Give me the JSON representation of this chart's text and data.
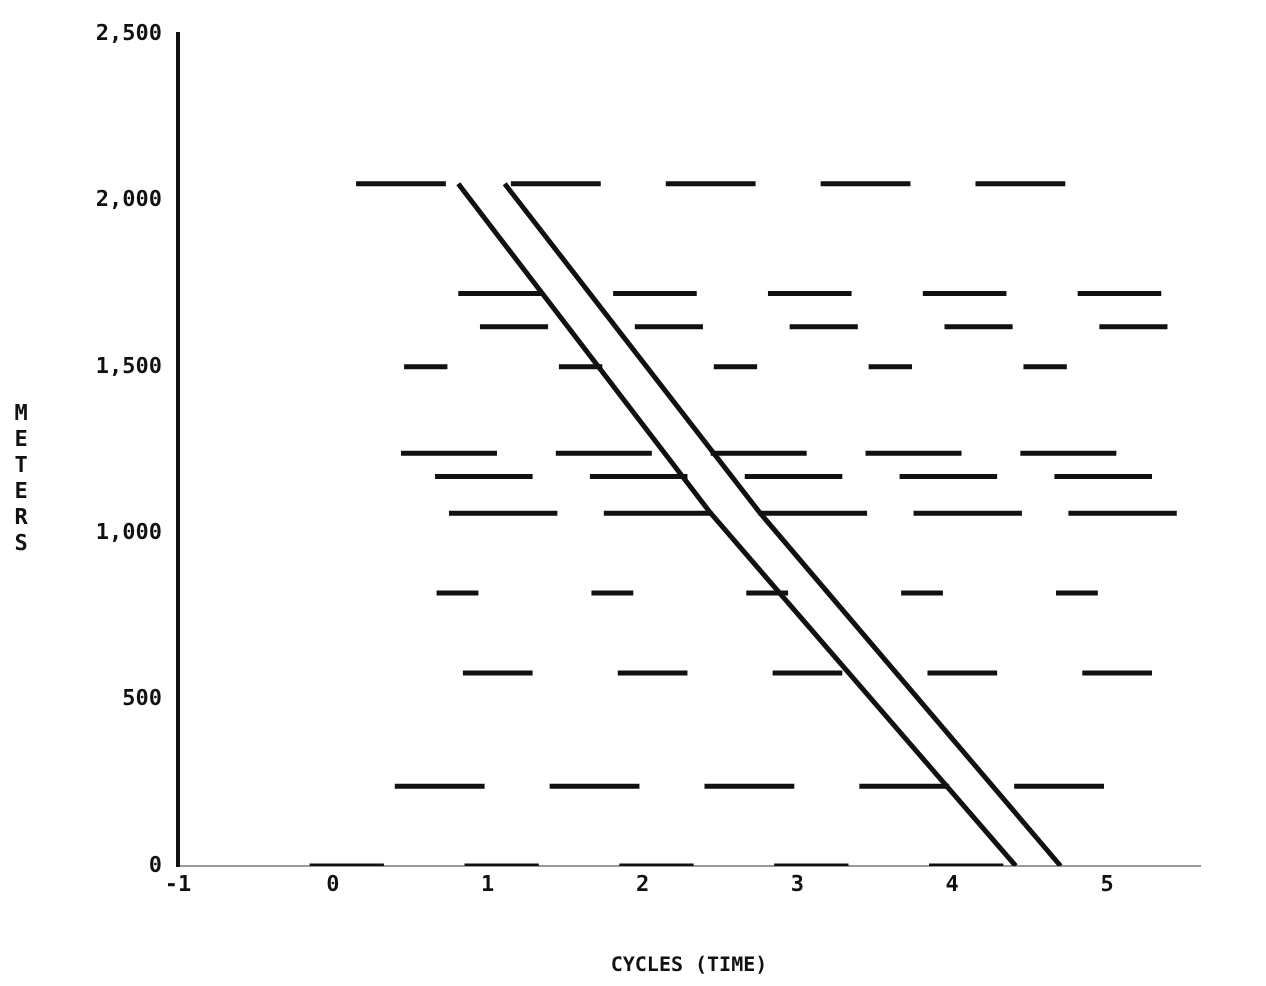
{
  "chart_data": {
    "type": "line",
    "xlabel": "CYCLES (TIME)",
    "ylabel": "METERS",
    "xlim": [
      -1,
      5.6
    ],
    "ylim": [
      0,
      2500
    ],
    "xticks": [
      -1,
      0,
      1,
      2,
      3,
      4,
      5
    ],
    "yticks": [
      0,
      500,
      {
        "value": 1000,
        "label": "1,000"
      },
      {
        "value": 1500,
        "label": "1,500"
      },
      {
        "value": 2000,
        "label": "2,000"
      },
      {
        "value": 2500,
        "label": "2,500"
      }
    ],
    "grid": false,
    "legend": false,
    "marker": "none",
    "line_style": "solid",
    "series": [
      {
        "color": "#111111",
        "x": [
          -0.15,
          0.33,
          0.59,
          0.85,
          1.33,
          1.59,
          1.85,
          2.33,
          2.59,
          2.85,
          3.33,
          3.59,
          3.85,
          4.33
        ],
        "values": [
          0,
          0,
          null,
          0,
          0,
          null,
          0,
          0,
          null,
          0,
          0,
          null,
          0,
          0
        ]
      },
      {
        "color": "#111111",
        "x": [
          0.4,
          0.98,
          1.19,
          1.4,
          1.98,
          2.19,
          2.4,
          2.98,
          3.19,
          3.4,
          3.98,
          4.19,
          4.4,
          4.98
        ],
        "values": [
          240,
          240,
          null,
          240,
          240,
          null,
          240,
          240,
          null,
          240,
          240,
          null,
          240,
          240
        ]
      },
      {
        "color": "#111111",
        "x": [
          0.84,
          1.29,
          1.56,
          1.84,
          2.29,
          2.56,
          2.84,
          3.29,
          3.56,
          3.84,
          4.29,
          4.56,
          4.84,
          5.29
        ],
        "values": [
          580,
          580,
          null,
          580,
          580,
          null,
          580,
          580,
          null,
          580,
          580,
          null,
          580,
          580
        ]
      },
      {
        "color": "#111111",
        "x": [
          0.67,
          0.94,
          1.3,
          1.67,
          1.94,
          2.3,
          2.67,
          2.94,
          3.3,
          3.67,
          3.94,
          4.3,
          4.67,
          4.94
        ],
        "values": [
          820,
          820,
          null,
          820,
          820,
          null,
          820,
          820,
          null,
          820,
          820,
          null,
          820,
          820
        ]
      },
      {
        "color": "#111111",
        "x": [
          0.75,
          1.45,
          1.6,
          1.75,
          2.45,
          2.6,
          2.75,
          3.45,
          3.6,
          3.75,
          4.45,
          4.6,
          4.75,
          5.45
        ],
        "values": [
          1060,
          1060,
          null,
          1060,
          1060,
          null,
          1060,
          1060,
          null,
          1060,
          1060,
          null,
          1060,
          1060
        ]
      },
      {
        "color": "#111111",
        "x": [
          0.66,
          1.29,
          1.48,
          1.66,
          2.29,
          2.48,
          2.66,
          3.29,
          3.48,
          3.66,
          4.29,
          4.48,
          4.66,
          5.29
        ],
        "values": [
          1170,
          1170,
          null,
          1170,
          1170,
          null,
          1170,
          1170,
          null,
          1170,
          1170,
          null,
          1170,
          1170
        ]
      },
      {
        "color": "#111111",
        "x": [
          0.44,
          1.06,
          1.25,
          1.44,
          2.06,
          2.25,
          2.44,
          3.06,
          3.25,
          3.44,
          4.06,
          4.25,
          4.44,
          5.06
        ],
        "values": [
          1240,
          1240,
          null,
          1240,
          1240,
          null,
          1240,
          1240,
          null,
          1240,
          1240,
          null,
          1240,
          1240
        ]
      },
      {
        "color": "#111111",
        "x": [
          0.46,
          0.74,
          1.1,
          1.46,
          1.74,
          2.1,
          2.46,
          2.74,
          3.1,
          3.46,
          3.74,
          4.1,
          4.46,
          4.74
        ],
        "values": [
          1500,
          1500,
          null,
          1500,
          1500,
          null,
          1500,
          1500,
          null,
          1500,
          1500,
          null,
          1500,
          1500
        ]
      },
      {
        "color": "#111111",
        "x": [
          0.95,
          1.39,
          1.67,
          1.95,
          2.39,
          2.67,
          2.95,
          3.39,
          3.67,
          3.95,
          4.39,
          4.67,
          4.95,
          5.39
        ],
        "values": [
          1620,
          1620,
          null,
          1620,
          1620,
          null,
          1620,
          1620,
          null,
          1620,
          1620,
          null,
          1620,
          1620
        ]
      },
      {
        "color": "#111111",
        "x": [
          0.81,
          1.35,
          1.58,
          1.81,
          2.35,
          2.58,
          2.81,
          3.35,
          3.58,
          3.81,
          4.35,
          4.58,
          4.81,
          5.35
        ],
        "values": [
          1720,
          1720,
          null,
          1720,
          1720,
          null,
          1720,
          1720,
          null,
          1720,
          1720,
          null,
          1720,
          1720
        ]
      },
      {
        "color": "#111111",
        "x": [
          0.15,
          0.73,
          0.94,
          1.15,
          1.73,
          1.94,
          2.15,
          2.73,
          2.94,
          3.15,
          3.73,
          3.94,
          4.15,
          4.73
        ],
        "values": [
          2050,
          2050,
          null,
          2050,
          2050,
          null,
          2050,
          2050,
          null,
          2050,
          2050,
          null,
          2050,
          2050
        ]
      },
      {
        "color": "#111111",
        "x": [
          0.81,
          2.44,
          4.41
        ],
        "values": [
          2050,
          1060,
          0
        ]
      },
      {
        "color": "#111111",
        "x": [
          1.11,
          2.76,
          4.7
        ],
        "values": [
          2050,
          1060,
          0
        ]
      }
    ]
  }
}
